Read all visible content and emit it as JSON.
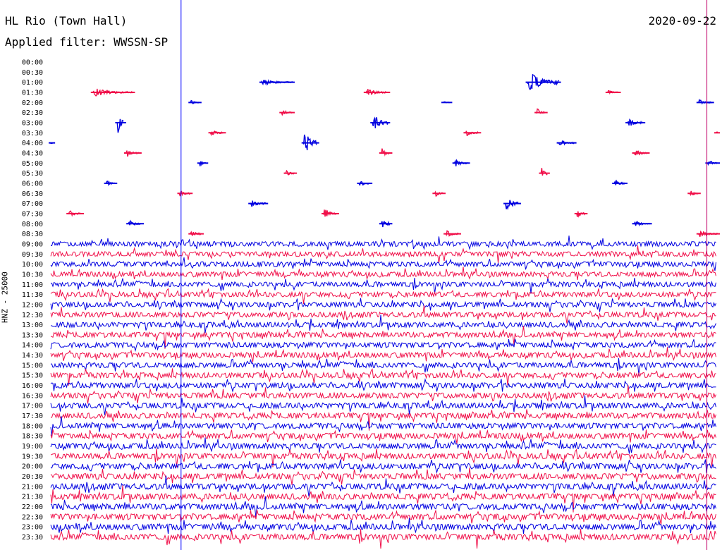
{
  "header": {
    "station": "HL Rio (Town Hall)",
    "filter": "Applied filter: WWSSN-SP",
    "date": "2020-09-22"
  },
  "chart_data": {
    "type": "line",
    "title": "HL Rio (Town Hall)",
    "subtitle": "Applied filter: WWSSN-SP",
    "date": "2020-09-22",
    "ylabel": "HNZ - 25000",
    "row_labels": [
      "00:00",
      "00:30",
      "01:00",
      "01:30",
      "02:00",
      "02:30",
      "03:00",
      "03:30",
      "04:00",
      "04:30",
      "05:00",
      "05:30",
      "06:00",
      "06:30",
      "07:00",
      "07:30",
      "08:00",
      "08:30",
      "09:00",
      "09:30",
      "10:00",
      "10:30",
      "11:00",
      "11:30",
      "12:00",
      "12:30",
      "13:00",
      "13:30",
      "14:00",
      "14:30",
      "15:00",
      "15:30",
      "16:00",
      "16:30",
      "17:00",
      "17:30",
      "18:00",
      "18:30",
      "19:00",
      "19:30",
      "20:00",
      "20:30",
      "21:00",
      "21:30",
      "22:00",
      "22:30",
      "23:00",
      "23:30"
    ],
    "row_colors": [
      "#0000e0",
      "#f0104a"
    ],
    "continuous_from": "09:00",
    "row_minutes": 30,
    "markers": [
      {
        "color": "#0000ff",
        "minute": 6
      },
      {
        "color": "#c0006a",
        "minute": 29.7
      }
    ],
    "bursts": [
      {
        "row": "01:00",
        "minute": 9.5,
        "width": 1.4,
        "amp": 4
      },
      {
        "row": "01:00",
        "minute": 21.5,
        "width": 1.4,
        "amp": 14
      },
      {
        "row": "01:30",
        "minute": 1.9,
        "width": 1.8,
        "amp": 5
      },
      {
        "row": "01:30",
        "minute": 14.2,
        "width": 1.0,
        "amp": 5
      },
      {
        "row": "01:30",
        "minute": 25.1,
        "width": 0.5,
        "amp": 3
      },
      {
        "row": "02:00",
        "minute": 6.3,
        "width": 0.4,
        "amp": 3
      },
      {
        "row": "02:00",
        "minute": 17.7,
        "width": 0.3,
        "amp": 2
      },
      {
        "row": "02:00",
        "minute": 29.2,
        "width": 0.6,
        "amp": 5
      },
      {
        "row": "02:30",
        "minute": 10.4,
        "width": 0.5,
        "amp": 4
      },
      {
        "row": "02:30",
        "minute": 21.9,
        "width": 0.4,
        "amp": 6
      },
      {
        "row": "03:00",
        "minute": 3.0,
        "width": 0.3,
        "amp": 17
      },
      {
        "row": "03:00",
        "minute": 14.5,
        "width": 0.7,
        "amp": 12
      },
      {
        "row": "03:00",
        "minute": 26.0,
        "width": 0.7,
        "amp": 6
      },
      {
        "row": "03:30",
        "minute": 7.2,
        "width": 0.6,
        "amp": 5
      },
      {
        "row": "03:30",
        "minute": 18.7,
        "width": 0.6,
        "amp": 5
      },
      {
        "row": "03:30",
        "minute": 30.0,
        "width": 0.6,
        "amp": 5
      },
      {
        "row": "04:00",
        "minute": 0.0,
        "width": 0.1,
        "amp": 4
      },
      {
        "row": "04:00",
        "minute": 11.4,
        "width": 0.6,
        "amp": 17
      },
      {
        "row": "04:00",
        "minute": 22.9,
        "width": 0.7,
        "amp": 4
      },
      {
        "row": "04:30",
        "minute": 3.4,
        "width": 0.6,
        "amp": 5
      },
      {
        "row": "04:30",
        "minute": 14.9,
        "width": 0.4,
        "amp": 7
      },
      {
        "row": "04:30",
        "minute": 26.3,
        "width": 0.6,
        "amp": 5
      },
      {
        "row": "05:00",
        "minute": 6.7,
        "width": 0.3,
        "amp": 5
      },
      {
        "row": "05:00",
        "minute": 18.2,
        "width": 0.6,
        "amp": 5
      },
      {
        "row": "05:00",
        "minute": 29.6,
        "width": 0.5,
        "amp": 5
      },
      {
        "row": "05:30",
        "minute": 10.6,
        "width": 0.4,
        "amp": 5
      },
      {
        "row": "05:30",
        "minute": 22.1,
        "width": 0.3,
        "amp": 10
      },
      {
        "row": "06:00",
        "minute": 2.5,
        "width": 0.4,
        "amp": 5
      },
      {
        "row": "06:00",
        "minute": 13.9,
        "width": 0.5,
        "amp": 5
      },
      {
        "row": "06:00",
        "minute": 25.4,
        "width": 0.5,
        "amp": 5
      },
      {
        "row": "06:30",
        "minute": 5.8,
        "width": 0.5,
        "amp": 5
      },
      {
        "row": "06:30",
        "minute": 17.3,
        "width": 0.4,
        "amp": 5
      },
      {
        "row": "06:30",
        "minute": 28.8,
        "width": 0.4,
        "amp": 5
      },
      {
        "row": "07:00",
        "minute": 9.0,
        "width": 0.7,
        "amp": 5
      },
      {
        "row": "07:00",
        "minute": 20.5,
        "width": 0.6,
        "amp": 12
      },
      {
        "row": "07:30",
        "minute": 0.8,
        "width": 0.6,
        "amp": 5
      },
      {
        "row": "07:30",
        "minute": 12.3,
        "width": 0.6,
        "amp": 8
      },
      {
        "row": "07:30",
        "minute": 23.7,
        "width": 0.4,
        "amp": 6
      },
      {
        "row": "08:00",
        "minute": 3.5,
        "width": 0.6,
        "amp": 5
      },
      {
        "row": "08:00",
        "minute": 14.9,
        "width": 0.4,
        "amp": 9
      },
      {
        "row": "08:00",
        "minute": 26.3,
        "width": 0.7,
        "amp": 5
      },
      {
        "row": "08:30",
        "minute": 6.3,
        "width": 0.5,
        "amp": 5
      },
      {
        "row": "08:30",
        "minute": 17.8,
        "width": 0.6,
        "amp": 5
      },
      {
        "row": "08:30",
        "minute": 29.2,
        "width": 2.2,
        "amp": 5
      }
    ]
  }
}
